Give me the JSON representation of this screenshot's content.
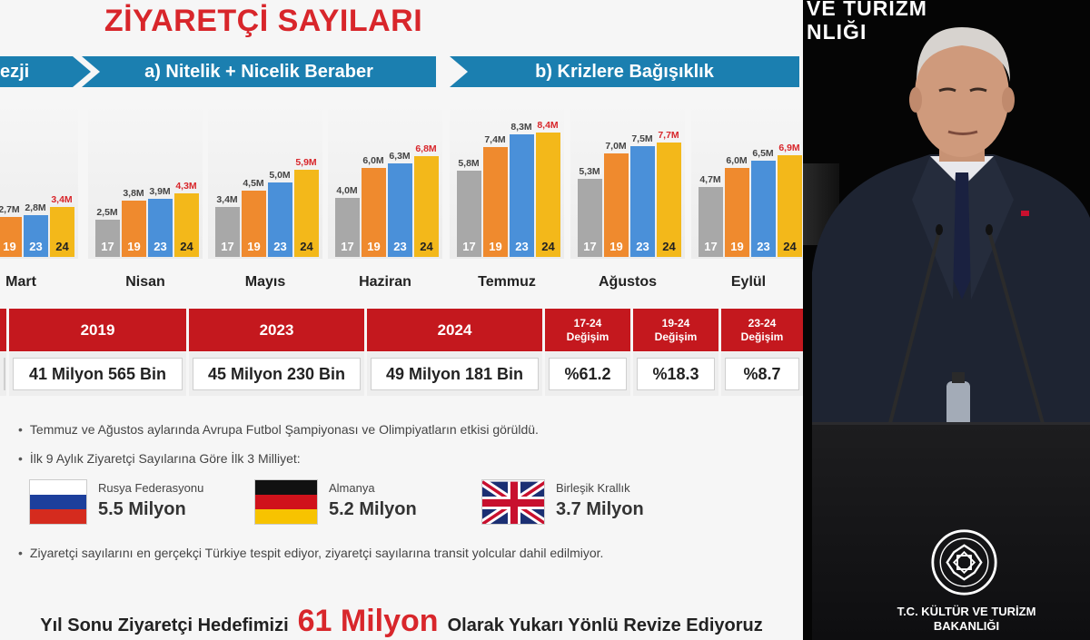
{
  "slide": {
    "title": "ZİYARETÇİ SAYILARI",
    "ribbons": [
      "ezji",
      "a) Nitelik + Nicelik Beraber",
      "b) Krizlere Bağışıklık"
    ],
    "months": [
      {
        "name": "Mart",
        "values": {
          "y19": "2,7M",
          "y23": "2,8M",
          "y24": "3,4M"
        },
        "h": [
          0,
          2.7,
          2.8,
          3.4
        ]
      },
      {
        "name": "Nisan",
        "values": {
          "y17": "2,5M",
          "y19": "3,8M",
          "y23": "3,9M",
          "y24": "4,3M"
        },
        "h": [
          2.5,
          3.8,
          3.9,
          4.3
        ]
      },
      {
        "name": "Mayıs",
        "values": {
          "y17": "3,4M",
          "y19": "4,5M",
          "y23": "5,0M",
          "y24": "5,9M"
        },
        "h": [
          3.4,
          4.5,
          5.0,
          5.9
        ]
      },
      {
        "name": "Haziran",
        "values": {
          "y17": "4,0M",
          "y19": "6,0M",
          "y23": "6,3M",
          "y24": "6,8M"
        },
        "h": [
          4.0,
          6.0,
          6.3,
          6.8
        ]
      },
      {
        "name": "Temmuz",
        "values": {
          "y17": "5,8M",
          "y19": "7,4M",
          "y23": "8,3M",
          "y24": "8,4M"
        },
        "h": [
          5.8,
          7.4,
          8.3,
          8.4
        ]
      },
      {
        "name": "Ağustos",
        "values": {
          "y17": "5,3M",
          "y19": "7,0M",
          "y23": "7,5M",
          "y24": "7,7M"
        },
        "h": [
          5.3,
          7.0,
          7.5,
          7.7
        ]
      },
      {
        "name": "Eylül",
        "values": {
          "y17": "4,7M",
          "y19": "6,0M",
          "y23": "6,5M",
          "y24": "6,9M"
        },
        "h": [
          4.7,
          6.0,
          6.5,
          6.9
        ]
      }
    ],
    "year_labels": [
      "17",
      "19",
      "23",
      "24"
    ],
    "colors": {
      "y17": "#a8a8a8",
      "y19": "#ef8a2e",
      "y23": "#4a90d9",
      "y24": "#f3b81a"
    },
    "table": {
      "headers": [
        "2019",
        "2023",
        "2024"
      ],
      "change_headers": [
        {
          "period": "17-24",
          "label": "Değişim"
        },
        {
          "period": "19-24",
          "label": "Değişim"
        },
        {
          "period": "23-24",
          "label": "Değişim"
        }
      ],
      "values": [
        "41 Milyon 565 Bin",
        "45 Milyon 230 Bin",
        "49 Milyon 181 Bin"
      ],
      "changes": [
        "%61.2",
        "%18.3",
        "%8.7"
      ]
    },
    "notes": [
      "Temmuz ve Ağustos aylarında Avrupa Futbol Şampiyonası ve Olimpiyatların etkisi görüldü.",
      "İlk 9 Aylık Ziyaretçi Sayılarına Göre İlk 3 Milliyet:",
      "Ziyaretçi sayılarını en gerçekçi Türkiye tespit ediyor, ziyaretçi sayılarına transit yolcular dahil edilmiyor."
    ],
    "countries": [
      {
        "name": "Rusya Federasyonu",
        "value": "5.5 Milyon",
        "flag": "russia-flag-icon"
      },
      {
        "name": "Almanya",
        "value": "5.2 Milyon",
        "flag": "germany-flag-icon"
      },
      {
        "name": "Birleşik Krallık",
        "value": "3.7 Milyon",
        "flag": "uk-flag-icon"
      }
    ],
    "headline": {
      "pre": "Yıl Sonu Ziyaretçi Hedefimizi",
      "big": "61 Milyon",
      "post": "Olarak Yukarı Yönlü Revize Ediyoruz"
    }
  },
  "speaker": {
    "ministry_top": [
      "VE TURİZM",
      "NLIĞI"
    ],
    "ministry_bottom": [
      "T.C. KÜLTÜR VE TURİZM",
      "BAKANLIĞI"
    ]
  }
}
